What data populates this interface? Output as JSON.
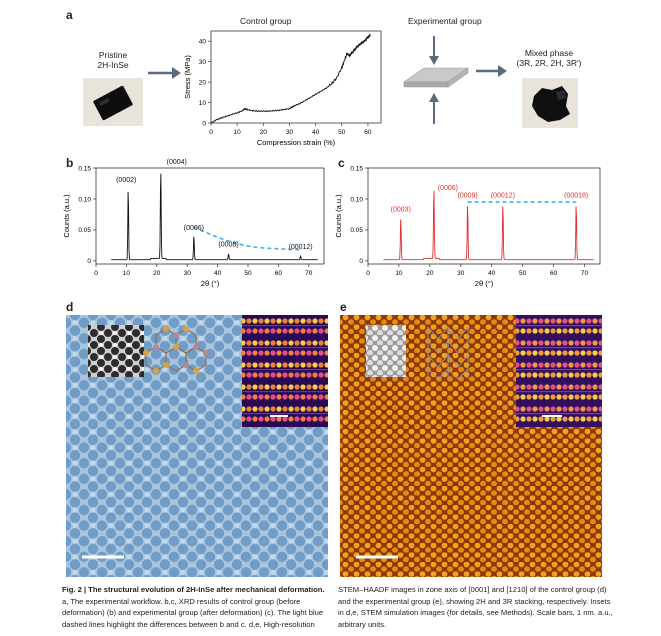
{
  "panel_a": {
    "label": "a",
    "pristine_label_1": "Pristine",
    "pristine_label_2": "2H-InSe",
    "control_title": "Control group",
    "experimental_title": "Experimental group",
    "mixed_label_1": "Mixed phase",
    "mixed_label_2": "(3R, 2R, 2H, 3R′)"
  },
  "panel_b": {
    "label": "b"
  },
  "panel_c": {
    "label": "c"
  },
  "panel_d": {
    "label": "d"
  },
  "panel_e": {
    "label": "e"
  },
  "caption": {
    "left_title": "Fig. 2 | The structural evolution of 2H-InSe after mechanical deformation.",
    "left_lines": [
      "a, The experimental workflow. b,c, XRD results of control group (before",
      "deformation) (b) and experimental group (after deformation) (c). The light blue",
      "dashed lines highlight the differences between b and c. d,e, High-resolution"
    ],
    "right_lines": [
      "STEM–HAADF images in zone axis of [0001] and [1210] of the control group (d)",
      "and the experimental group (e), showing 2H and 3R stacking, respectively. Insets",
      "in d,e, STEM simulation images (for details, see Methods). Scale bars, 1 nm. a.u.,",
      "arbitrary units."
    ]
  },
  "chart_data": [
    {
      "type": "line",
      "panel": "a",
      "xlabel": "Compression strain (%)",
      "ylabel": "Stress (MPa)",
      "xlim": [
        0,
        65
      ],
      "ylim": [
        0,
        45
      ],
      "xticks": [
        0,
        10,
        20,
        30,
        40,
        50,
        60
      ],
      "yticks": [
        0,
        10,
        20,
        30,
        40
      ],
      "x": [
        0,
        2,
        4,
        6,
        8,
        10,
        12,
        13,
        14,
        16,
        18,
        20,
        22,
        24,
        26,
        28,
        30,
        31,
        32,
        34,
        36,
        38,
        40,
        42,
        44,
        46,
        48,
        50,
        51,
        52,
        53,
        54,
        55,
        56,
        57,
        58,
        59,
        60,
        61
      ],
      "y": [
        0,
        1.5,
        2.5,
        3.3,
        4.2,
        5.0,
        6.0,
        7.0,
        6.5,
        6.0,
        5.8,
        5.8,
        5.8,
        6.0,
        6.2,
        6.6,
        7.0,
        7.8,
        8.5,
        9.5,
        11.0,
        12.5,
        14.0,
        15.5,
        17.0,
        19.0,
        22.0,
        27.0,
        30.5,
        34.0,
        33.0,
        34.5,
        36.0,
        37.5,
        38.5,
        39.5,
        40.5,
        42.0,
        43.0
      ]
    },
    {
      "type": "line",
      "panel": "b",
      "xlabel": "2θ (°)",
      "ylabel": "Counts (a.u.)",
      "xlim": [
        0,
        75
      ],
      "ylim": [
        -0.005,
        0.15
      ],
      "xticks": [
        0,
        10,
        20,
        30,
        40,
        50,
        60,
        70
      ],
      "yticks": [
        0,
        0.05,
        0.1,
        0.15
      ],
      "ytick_labels": [
        "0",
        "0.05",
        "0.10",
        "0.15"
      ],
      "color": "#111111",
      "peaks": [
        {
          "x": 10.6,
          "y": 0.118,
          "label": "(0002)"
        },
        {
          "x": 21.3,
          "y": 0.148,
          "label": "(0004)"
        },
        {
          "x": 32.2,
          "y": 0.04,
          "label": "(0006)"
        },
        {
          "x": 43.6,
          "y": 0.01,
          "label": "(0008)"
        },
        {
          "x": 67.3,
          "y": 0.006,
          "label": "(00012)"
        }
      ],
      "dashed_highlight": {
        "color": "#3fb4e8",
        "x": [
          32.2,
          45,
          55,
          67.3
        ],
        "y": [
          0.055,
          0.03,
          0.021,
          0.018
        ]
      }
    },
    {
      "type": "line",
      "panel": "c",
      "xlabel": "2θ (°)",
      "ylabel": "Counts (a.u.)",
      "xlim": [
        0,
        75
      ],
      "ylim": [
        -0.005,
        0.15
      ],
      "xticks": [
        0,
        10,
        20,
        30,
        40,
        50,
        60,
        70
      ],
      "yticks": [
        0,
        0.05,
        0.1,
        0.15
      ],
      "ytick_labels": [
        "0",
        "0.05",
        "0.10",
        "0.15"
      ],
      "color": "#e03030",
      "peaks": [
        {
          "x": 10.6,
          "y": 0.07,
          "label": "(0003)"
        },
        {
          "x": 21.3,
          "y": 0.118,
          "label": "(0006)"
        },
        {
          "x": 32.2,
          "y": 0.093,
          "label": "(0009)"
        },
        {
          "x": 43.6,
          "y": 0.093,
          "label": "(00012)"
        },
        {
          "x": 67.3,
          "y": 0.093,
          "label": "(00018)"
        }
      ],
      "dashed_highlight": {
        "color": "#3fb4e8",
        "x": [
          32.2,
          67.3
        ],
        "y": [
          0.095,
          0.095
        ]
      }
    }
  ]
}
